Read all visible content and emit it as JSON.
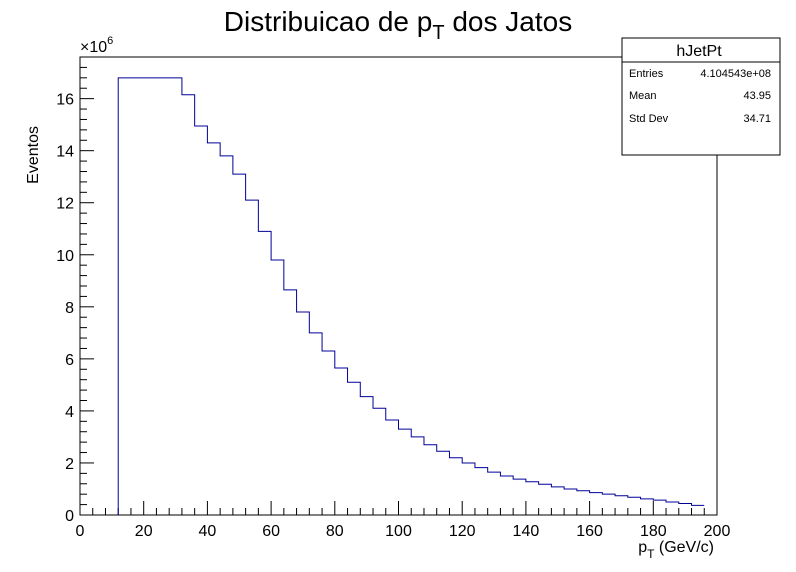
{
  "chart_data": {
    "type": "bar",
    "title_main": "Distribuicao de p",
    "title_sub": "T",
    "title_rest": " dos Jatos",
    "xlabel_main": "p",
    "xlabel_sub": "T",
    "xlabel_rest": " (GeV/c)",
    "ylabel": "Eventos",
    "y_multiplier": "×10",
    "y_multiplier_exp": "6",
    "xlim": [
      0,
      200
    ],
    "ylim": [
      0,
      17.6
    ],
    "x_ticks": [
      0,
      20,
      40,
      60,
      80,
      100,
      120,
      140,
      160,
      180,
      200
    ],
    "y_ticks": [
      0,
      2,
      4,
      6,
      8,
      10,
      12,
      14,
      16
    ],
    "bin_width": 4,
    "bin_edges_start": 12,
    "values": [
      16.8,
      16.8,
      16.8,
      16.8,
      16.8,
      16.15,
      14.95,
      14.3,
      13.8,
      13.1,
      12.1,
      10.9,
      9.8,
      8.65,
      7.8,
      7.0,
      6.3,
      5.65,
      5.1,
      4.55,
      4.1,
      3.65,
      3.3,
      3.0,
      2.7,
      2.45,
      2.2,
      2.0,
      1.82,
      1.65,
      1.5,
      1.38,
      1.28,
      1.18,
      1.08,
      1.0,
      0.93,
      0.86,
      0.8,
      0.74,
      0.68,
      0.62,
      0.57,
      0.5,
      0.44,
      0.37
    ],
    "line_color": "#000099",
    "grid": false,
    "legend": "none"
  },
  "stats_box": {
    "title": "hJetPt",
    "rows": [
      {
        "label": "Entries",
        "value": "4.104543e+08"
      },
      {
        "label": "Mean",
        "value": "43.95"
      },
      {
        "label": "Std Dev",
        "value": "34.71"
      }
    ]
  }
}
